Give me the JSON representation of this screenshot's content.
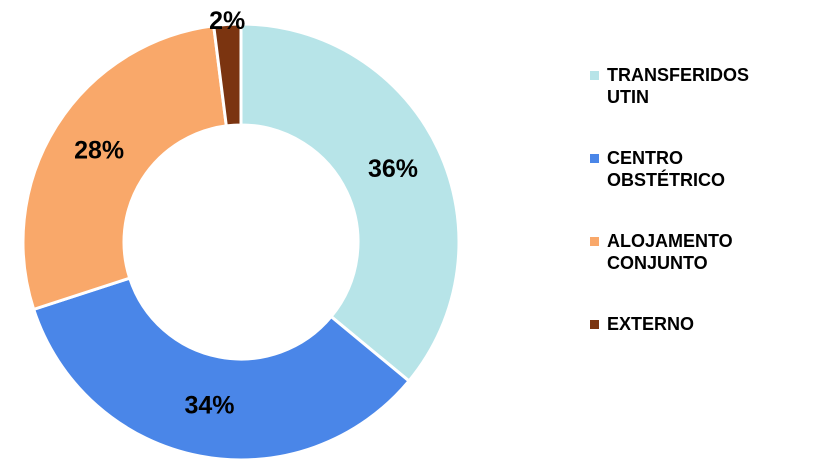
{
  "chart_data": {
    "type": "donut",
    "categories": [
      "TRANSFERIDOS UTIN",
      "CENTRO OBSTÉTRICO",
      "ALOJAMENTO CONJUNTO",
      "EXTERNO"
    ],
    "values": [
      36,
      34,
      28,
      2
    ],
    "value_labels": [
      "36%",
      "34%",
      "28%",
      "2%"
    ],
    "colors": [
      "#b7e4e8",
      "#4a86e8",
      "#f9a86a",
      "#7b3410"
    ],
    "legend": "right"
  }
}
